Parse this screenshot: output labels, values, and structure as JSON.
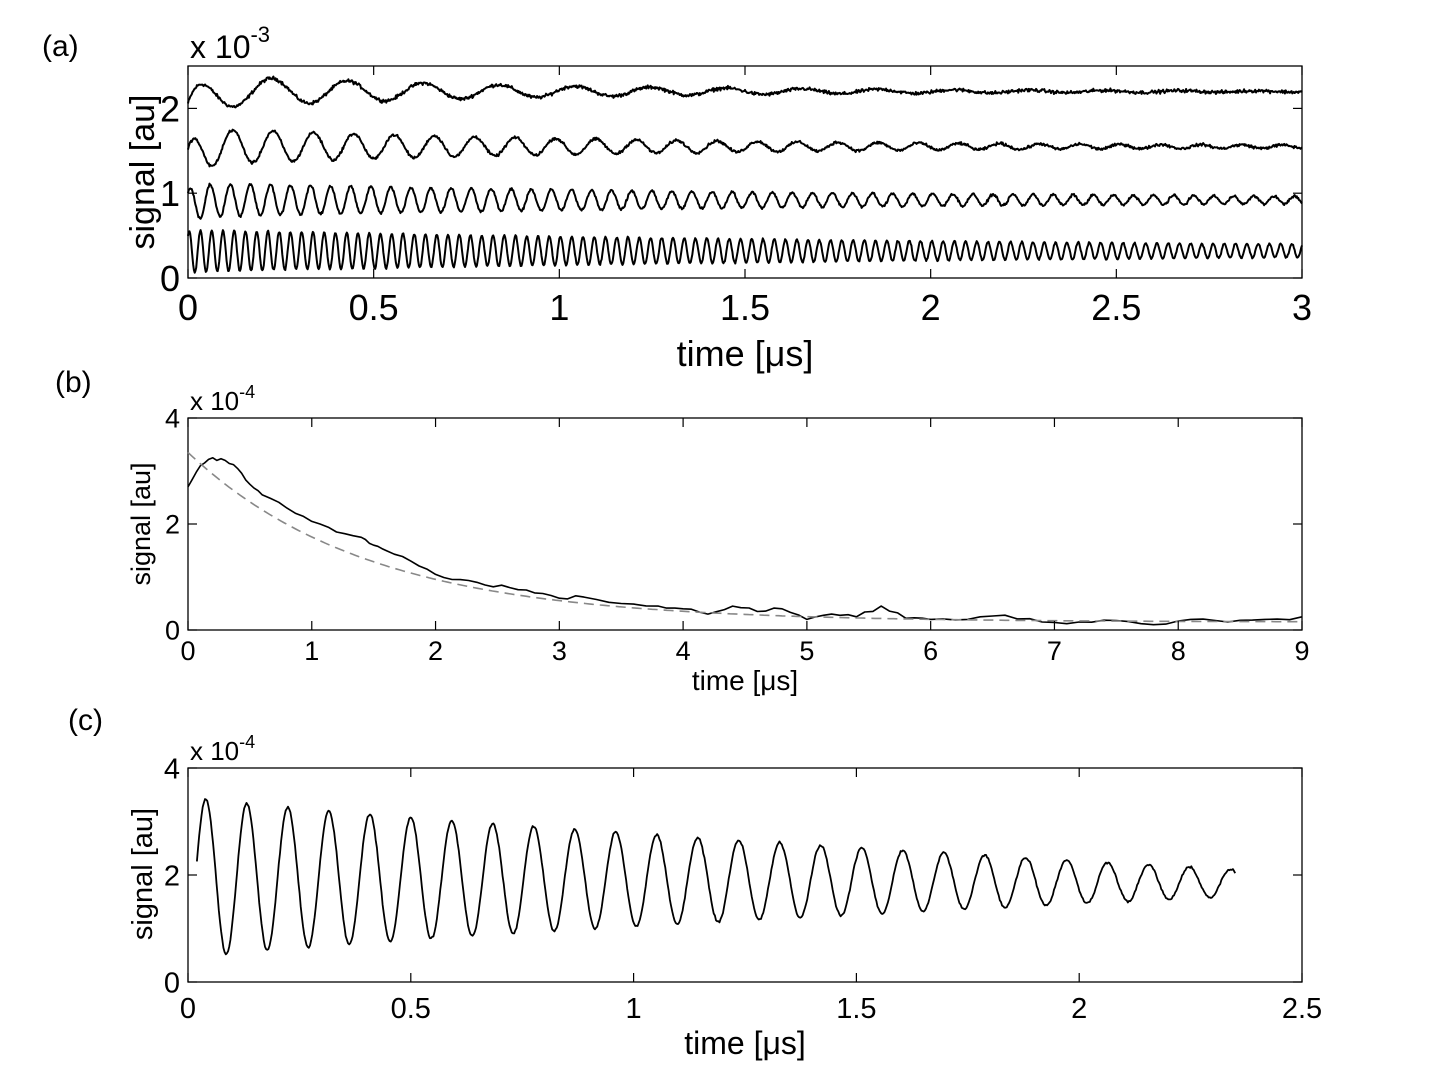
{
  "chart_data": [
    {
      "panel_label": "(a)",
      "type": "line",
      "ylabel": "signal [au]",
      "xlabel": "time [μs]",
      "exponent_base": "x 10",
      "exponent": "-3",
      "xlim": [
        0,
        3
      ],
      "ylim": [
        0,
        2.5
      ],
      "x_ticks": [
        0,
        0.5,
        1,
        1.5,
        2,
        2.5,
        3
      ],
      "x_tick_labels": [
        "0",
        "0.5",
        "1",
        "1.5",
        "2",
        "2.5",
        "3"
      ],
      "y_ticks": [
        0,
        1,
        2
      ],
      "y_tick_labels": [
        "0",
        "1",
        "2"
      ],
      "grid": false,
      "colors": {
        "trace": "#000000",
        "axes": "#000000"
      },
      "series": [
        {
          "offset": 2.2,
          "start": 1.9,
          "amplitude": 0.2,
          "frequency_mhz": 4.9,
          "decay_us": 0.9,
          "noise": 0.05
        },
        {
          "offset": 1.55,
          "start": 1.35,
          "amplitude": 0.22,
          "frequency_mhz": 9.2,
          "decay_us": 1.2,
          "noise": 0.04
        },
        {
          "offset": 0.92,
          "start": 0.85,
          "amplitude": 0.2,
          "frequency_mhz": 18.5,
          "decay_us": 2.0,
          "noise": 0.035
        },
        {
          "offset": 0.32,
          "start": 0.3,
          "amplitude": 0.25,
          "frequency_mhz": 33.0,
          "decay_us": 2.6,
          "noise": 0.025
        }
      ]
    },
    {
      "panel_label": "(b)",
      "type": "line",
      "ylabel": "signal [au]",
      "xlabel": "time [μs]",
      "exponent_base": "x 10",
      "exponent": "-4",
      "xlim": [
        0,
        9
      ],
      "ylim": [
        0,
        4
      ],
      "x_ticks": [
        0,
        1,
        2,
        3,
        4,
        5,
        6,
        7,
        8,
        9
      ],
      "x_tick_labels": [
        "0",
        "1",
        "2",
        "3",
        "4",
        "5",
        "6",
        "7",
        "8",
        "9"
      ],
      "y_ticks": [
        0,
        2,
        4
      ],
      "y_tick_labels": [
        "0",
        "2",
        "4"
      ],
      "grid": false,
      "colors": {
        "trace": "#000000",
        "fit": "#888888"
      },
      "series": [
        {
          "style": "solid",
          "x": [
            0,
            0.1,
            0.2,
            0.3,
            0.4,
            0.5,
            0.6,
            0.8,
            1.0,
            1.2,
            1.4,
            1.5,
            1.6,
            1.8,
            2.0,
            2.2,
            2.4,
            2.6,
            2.8,
            3.0,
            3.2,
            3.5,
            3.8,
            4.0,
            4.2,
            4.4,
            4.6,
            4.8,
            5.0,
            5.2,
            5.4,
            5.6,
            5.8,
            6.0,
            6.3,
            6.6,
            6.9,
            7.2,
            7.5,
            7.8,
            8.1,
            8.4,
            8.7,
            9.0
          ],
          "y": [
            2.7,
            3.1,
            3.25,
            3.2,
            3.05,
            2.75,
            2.55,
            2.3,
            2.05,
            1.85,
            1.75,
            1.6,
            1.5,
            1.3,
            1.05,
            0.95,
            0.85,
            0.8,
            0.7,
            0.6,
            0.62,
            0.5,
            0.45,
            0.4,
            0.3,
            0.45,
            0.35,
            0.4,
            0.2,
            0.3,
            0.25,
            0.45,
            0.22,
            0.2,
            0.2,
            0.28,
            0.15,
            0.15,
            0.18,
            0.1,
            0.2,
            0.15,
            0.2,
            0.25
          ]
        },
        {
          "style": "dashed",
          "fit": {
            "amplitude": 3.2,
            "tau_us": 1.45,
            "baseline": 0.15
          }
        }
      ]
    },
    {
      "panel_label": "(c)",
      "type": "line",
      "ylabel": "signal [au]",
      "xlabel": "time [μs]",
      "exponent_base": "x 10",
      "exponent": "-4",
      "xlim": [
        0,
        2.5
      ],
      "ylim": [
        0,
        4
      ],
      "x_ticks": [
        0,
        0.5,
        1,
        1.5,
        2,
        2.5
      ],
      "x_tick_labels": [
        "0",
        "0.5",
        "1",
        "1.5",
        "2",
        "2.5"
      ],
      "y_ticks": [
        0,
        2,
        4
      ],
      "y_tick_labels": [
        "0",
        "2",
        "4"
      ],
      "grid": false,
      "colors": {
        "trace": "#000000"
      },
      "series": [
        {
          "x_start": 0.02,
          "x_end": 2.35,
          "period_us": 0.092,
          "phase_peak_us": 0.04,
          "offset_start": 1.95,
          "offset_end": 1.85,
          "amplitude_start": 1.5,
          "amplitude_end": 0.25,
          "noise": 0.06
        }
      ]
    }
  ]
}
